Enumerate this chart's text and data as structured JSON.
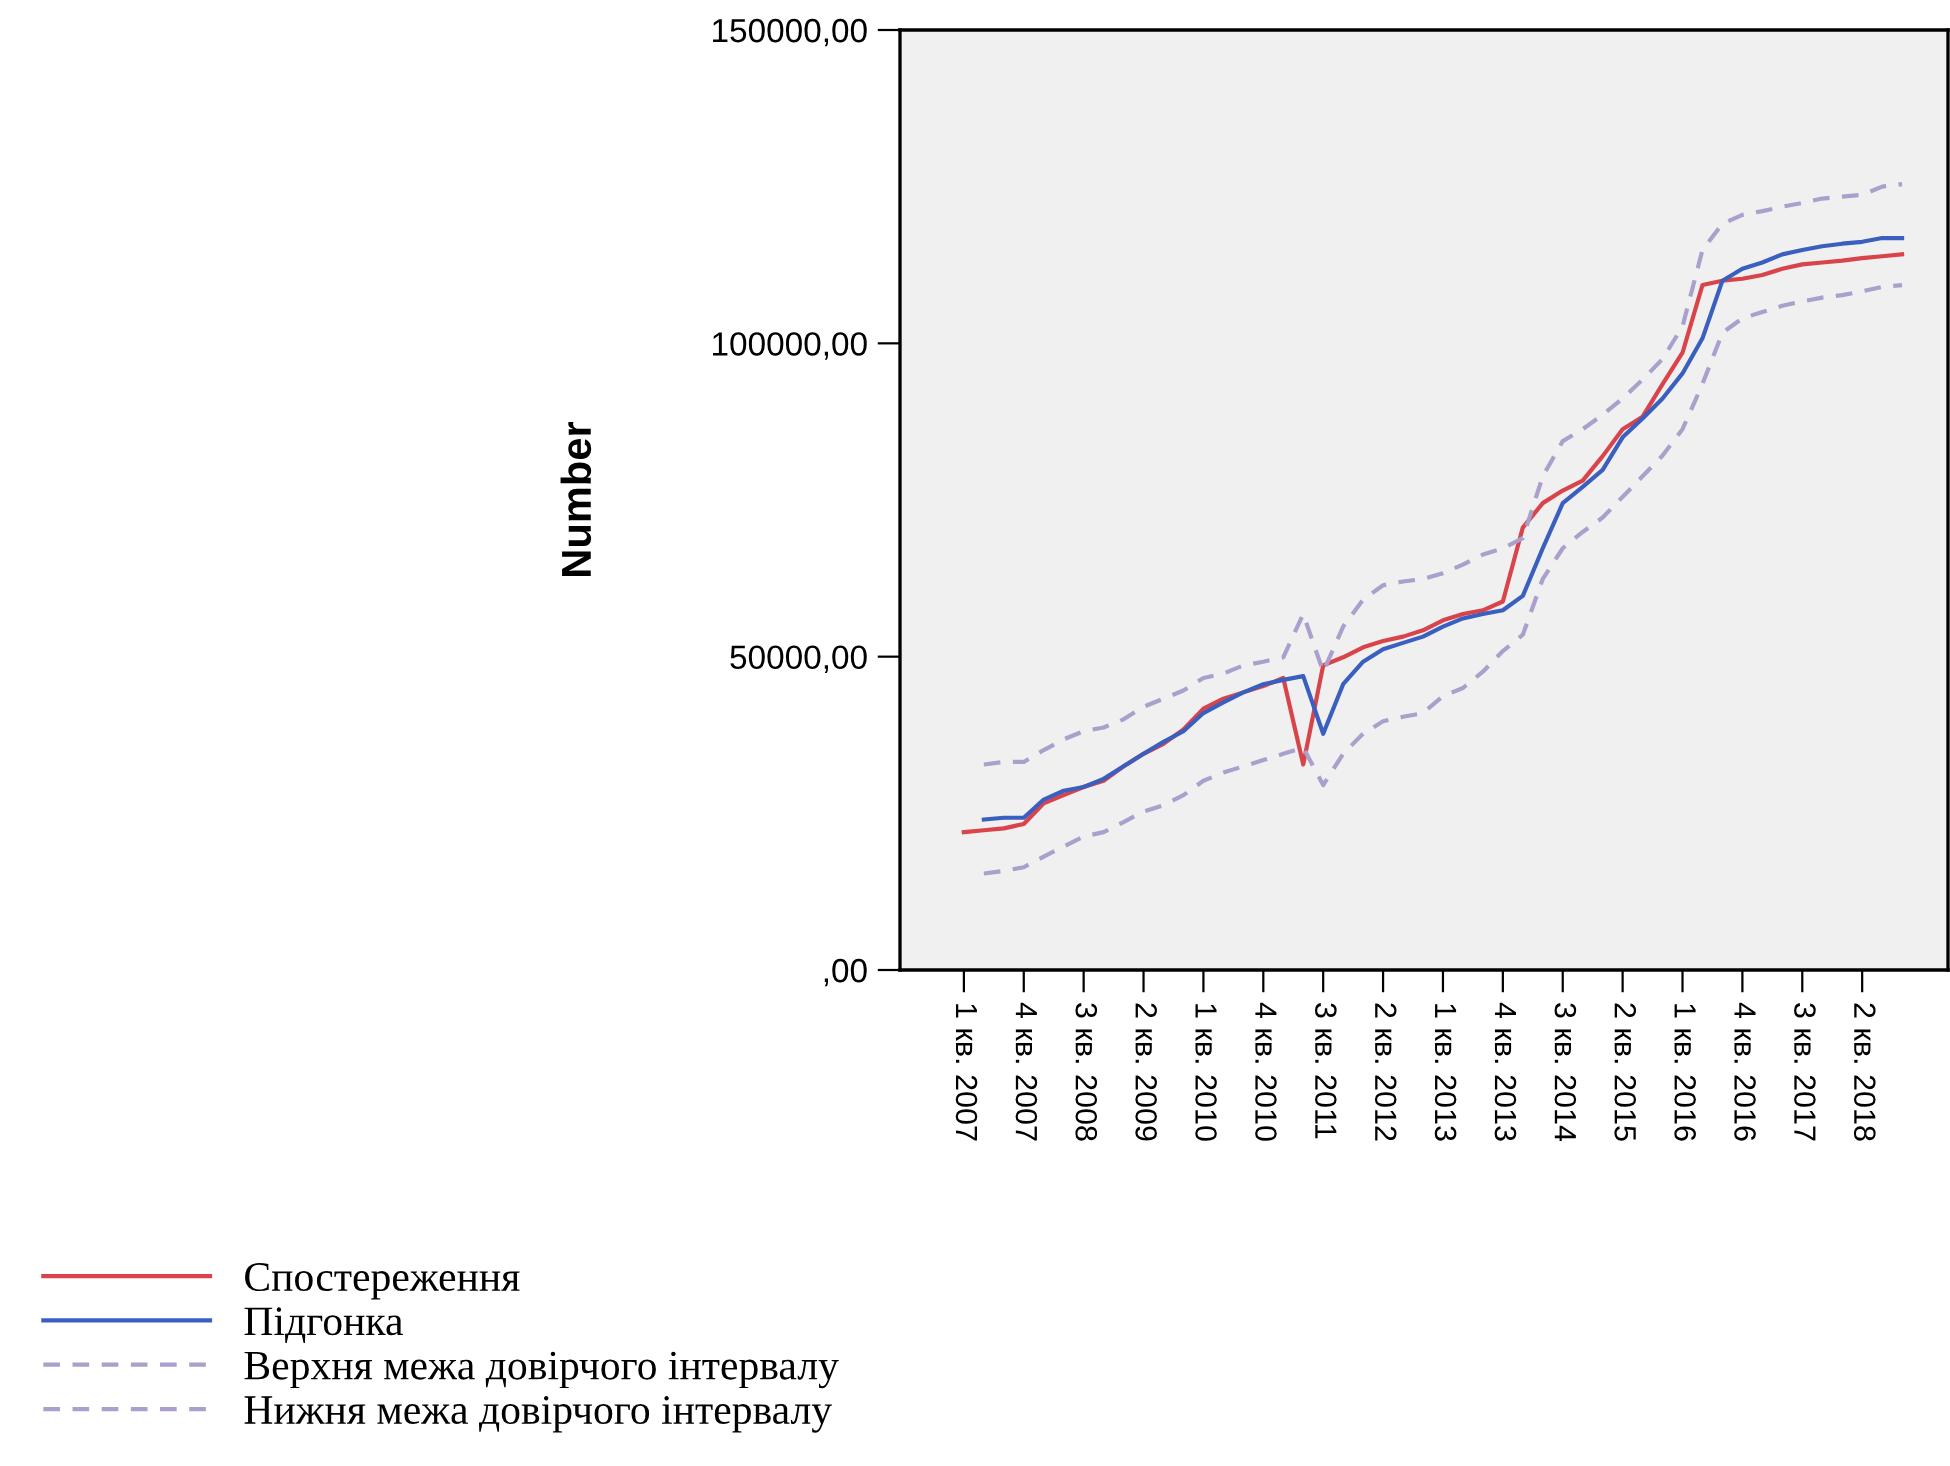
{
  "chart_data": {
    "type": "line",
    "ylabel": "Number",
    "categories": [
      "1 кв. 2007",
      null,
      null,
      "4 кв. 2007",
      null,
      null,
      "3 кв. 2008",
      null,
      null,
      "2 кв. 2009",
      null,
      null,
      "1 кв. 2010",
      null,
      null,
      "4 кв. 2010",
      null,
      null,
      "3 кв. 2011",
      null,
      null,
      "2 кв. 2012",
      null,
      null,
      "1 кв. 2013",
      null,
      null,
      "4 кв. 2013",
      null,
      null,
      "3 кв. 2014",
      null,
      null,
      "2 кв. 2015",
      null,
      null,
      "1 кв. 2016",
      null,
      null,
      "4 кв. 2016",
      null,
      null,
      "3 кв. 2017",
      null,
      null,
      "2 кв. 2018",
      null,
      null
    ],
    "series": [
      {
        "name": "Спостереження",
        "color": "#d9434a",
        "line_style": "solid",
        "values": [
          22000,
          22300,
          22600,
          23300,
          26600,
          27900,
          29200,
          30200,
          32500,
          34500,
          36100,
          38400,
          41700,
          43300,
          44300,
          45300,
          46600,
          32800,
          48600,
          49900,
          51500,
          52500,
          53200,
          54200,
          55800,
          56800,
          57400,
          58800,
          70600,
          74500,
          76500,
          78100,
          82000,
          86300,
          88300,
          93500,
          98500,
          109300,
          110000,
          110300,
          110900,
          111900,
          112600,
          112900,
          113200,
          113600,
          113900,
          114200
        ]
      },
      {
        "name": "Підгонка",
        "color": "#3a5fbf",
        "line_style": "solid",
        "values": [
          null,
          24000,
          24300,
          24300,
          27200,
          28600,
          29200,
          30500,
          32500,
          34500,
          36400,
          38100,
          41000,
          42700,
          44300,
          45600,
          46300,
          46900,
          37700,
          45600,
          49200,
          51200,
          52200,
          53200,
          54800,
          56100,
          56800,
          57400,
          59700,
          67300,
          74500,
          77100,
          79800,
          85000,
          88000,
          91200,
          95200,
          100800,
          110000,
          111900,
          112900,
          114200,
          114900,
          115500,
          115900,
          116200,
          116800,
          116800
        ]
      },
      {
        "name": "Верхня межа довірчого інтервалу",
        "color": "#ab9fcc",
        "line_style": "dashed",
        "values": [
          null,
          32800,
          33200,
          33200,
          35100,
          36800,
          38100,
          38700,
          40000,
          42000,
          43300,
          44600,
          46600,
          47300,
          48600,
          49200,
          49900,
          56800,
          47600,
          54800,
          59100,
          61400,
          62000,
          62400,
          63300,
          64700,
          66300,
          67300,
          68900,
          78800,
          84400,
          86300,
          88600,
          91200,
          94200,
          97500,
          102700,
          114900,
          119100,
          120500,
          121100,
          121800,
          122400,
          123100,
          123400,
          123700,
          125000,
          125400
        ]
      },
      {
        "name": "Нижня межа довірчого інтервалу",
        "color": "#ab9fcc",
        "line_style": "dashed",
        "values": [
          null,
          15400,
          15800,
          16400,
          18100,
          19700,
          21300,
          22000,
          23600,
          25300,
          26300,
          27900,
          30200,
          31500,
          32500,
          33500,
          34500,
          35500,
          29500,
          34500,
          37700,
          39700,
          40400,
          41000,
          43700,
          45000,
          47600,
          50900,
          53500,
          62400,
          67300,
          69900,
          72200,
          75500,
          78800,
          82100,
          86300,
          93500,
          101700,
          104000,
          105000,
          106000,
          106700,
          107300,
          107700,
          108300,
          109000,
          109300
        ]
      }
    ],
    "ylim": [
      0,
      150000
    ],
    "yticks": [
      {
        "value": 0,
        "label": ",00"
      },
      {
        "value": 50000,
        "label": "50000,00"
      },
      {
        "value": 100000,
        "label": "100000,00"
      },
      {
        "value": 150000,
        "label": "150000,00"
      }
    ],
    "grid": false,
    "legend": "bottom",
    "marker": "none"
  }
}
